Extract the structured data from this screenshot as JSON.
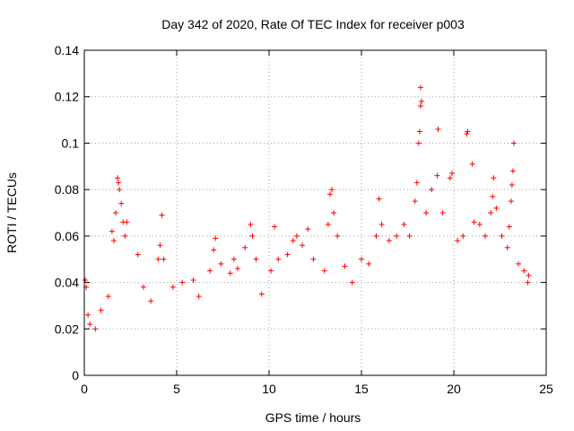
{
  "chart_data": {
    "type": "scatter",
    "title": "Day 342 of 2020, Rate Of TEC Index for receiver p003",
    "xlabel": "GPS time / hours",
    "ylabel": "ROTI / TECUs",
    "xlim": [
      0,
      25
    ],
    "ylim": [
      0,
      0.14
    ],
    "x_ticks": [
      "0",
      "5",
      "10",
      "15",
      "20",
      "25"
    ],
    "y_ticks": [
      "0",
      "0.02",
      "0.04",
      "0.06",
      "0.08",
      "0.1",
      "0.12",
      "0.14"
    ],
    "grid": true,
    "marker": "+",
    "color": "#ff0000",
    "series": [
      {
        "name": "ROTI",
        "points": [
          [
            0.05,
            0.041
          ],
          [
            0.1,
            0.038
          ],
          [
            0.2,
            0.026
          ],
          [
            0.3,
            0.022
          ],
          [
            0.6,
            0.02
          ],
          [
            0.9,
            0.028
          ],
          [
            1.3,
            0.034
          ],
          [
            1.5,
            0.062
          ],
          [
            1.6,
            0.058
          ],
          [
            1.7,
            0.07
          ],
          [
            1.8,
            0.085
          ],
          [
            1.85,
            0.083
          ],
          [
            1.9,
            0.08
          ],
          [
            2.0,
            0.074
          ],
          [
            2.1,
            0.066
          ],
          [
            2.2,
            0.06
          ],
          [
            2.3,
            0.066
          ],
          [
            2.9,
            0.052
          ],
          [
            3.2,
            0.038
          ],
          [
            3.6,
            0.032
          ],
          [
            4.0,
            0.05
          ],
          [
            4.1,
            0.056
          ],
          [
            4.2,
            0.069
          ],
          [
            4.3,
            0.05
          ],
          [
            4.8,
            0.038
          ],
          [
            5.3,
            0.04
          ],
          [
            5.9,
            0.041
          ],
          [
            6.2,
            0.034
          ],
          [
            6.8,
            0.045
          ],
          [
            7.0,
            0.054
          ],
          [
            7.1,
            0.059
          ],
          [
            7.4,
            0.048
          ],
          [
            7.9,
            0.044
          ],
          [
            8.1,
            0.05
          ],
          [
            8.3,
            0.046
          ],
          [
            8.7,
            0.055
          ],
          [
            9.0,
            0.065
          ],
          [
            9.1,
            0.06
          ],
          [
            9.3,
            0.05
          ],
          [
            9.6,
            0.035
          ],
          [
            10.1,
            0.045
          ],
          [
            10.3,
            0.064
          ],
          [
            10.5,
            0.05
          ],
          [
            11.0,
            0.052
          ],
          [
            11.3,
            0.058
          ],
          [
            11.5,
            0.06
          ],
          [
            11.8,
            0.056
          ],
          [
            12.1,
            0.063
          ],
          [
            12.4,
            0.05
          ],
          [
            13.0,
            0.045
          ],
          [
            13.2,
            0.065
          ],
          [
            13.3,
            0.078
          ],
          [
            13.4,
            0.08
          ],
          [
            13.5,
            0.07
          ],
          [
            13.7,
            0.06
          ],
          [
            14.1,
            0.047
          ],
          [
            14.5,
            0.04
          ],
          [
            15.0,
            0.05
          ],
          [
            15.4,
            0.048
          ],
          [
            15.8,
            0.06
          ],
          [
            15.95,
            0.076
          ],
          [
            16.1,
            0.065
          ],
          [
            16.5,
            0.058
          ],
          [
            16.9,
            0.06
          ],
          [
            17.3,
            0.065
          ],
          [
            17.6,
            0.06
          ],
          [
            17.9,
            0.075
          ],
          [
            18.0,
            0.083
          ],
          [
            18.1,
            0.1
          ],
          [
            18.15,
            0.105
          ],
          [
            18.2,
            0.116
          ],
          [
            18.25,
            0.118
          ],
          [
            18.2,
            0.124
          ],
          [
            18.5,
            0.07
          ],
          [
            18.8,
            0.08
          ],
          [
            19.1,
            0.086
          ],
          [
            19.15,
            0.106
          ],
          [
            19.4,
            0.07
          ],
          [
            19.8,
            0.085
          ],
          [
            19.9,
            0.087
          ],
          [
            20.2,
            0.058
          ],
          [
            20.5,
            0.06
          ],
          [
            20.7,
            0.104
          ],
          [
            20.75,
            0.105
          ],
          [
            21.0,
            0.091
          ],
          [
            21.1,
            0.066
          ],
          [
            21.4,
            0.065
          ],
          [
            21.7,
            0.06
          ],
          [
            22.0,
            0.07
          ],
          [
            22.1,
            0.077
          ],
          [
            22.15,
            0.085
          ],
          [
            22.3,
            0.072
          ],
          [
            22.6,
            0.06
          ],
          [
            22.9,
            0.055
          ],
          [
            23.0,
            0.064
          ],
          [
            23.1,
            0.075
          ],
          [
            23.15,
            0.082
          ],
          [
            23.2,
            0.088
          ],
          [
            23.25,
            0.1
          ],
          [
            23.5,
            0.048
          ],
          [
            23.8,
            0.045
          ],
          [
            24.0,
            0.04
          ],
          [
            24.05,
            0.043
          ]
        ]
      }
    ]
  }
}
